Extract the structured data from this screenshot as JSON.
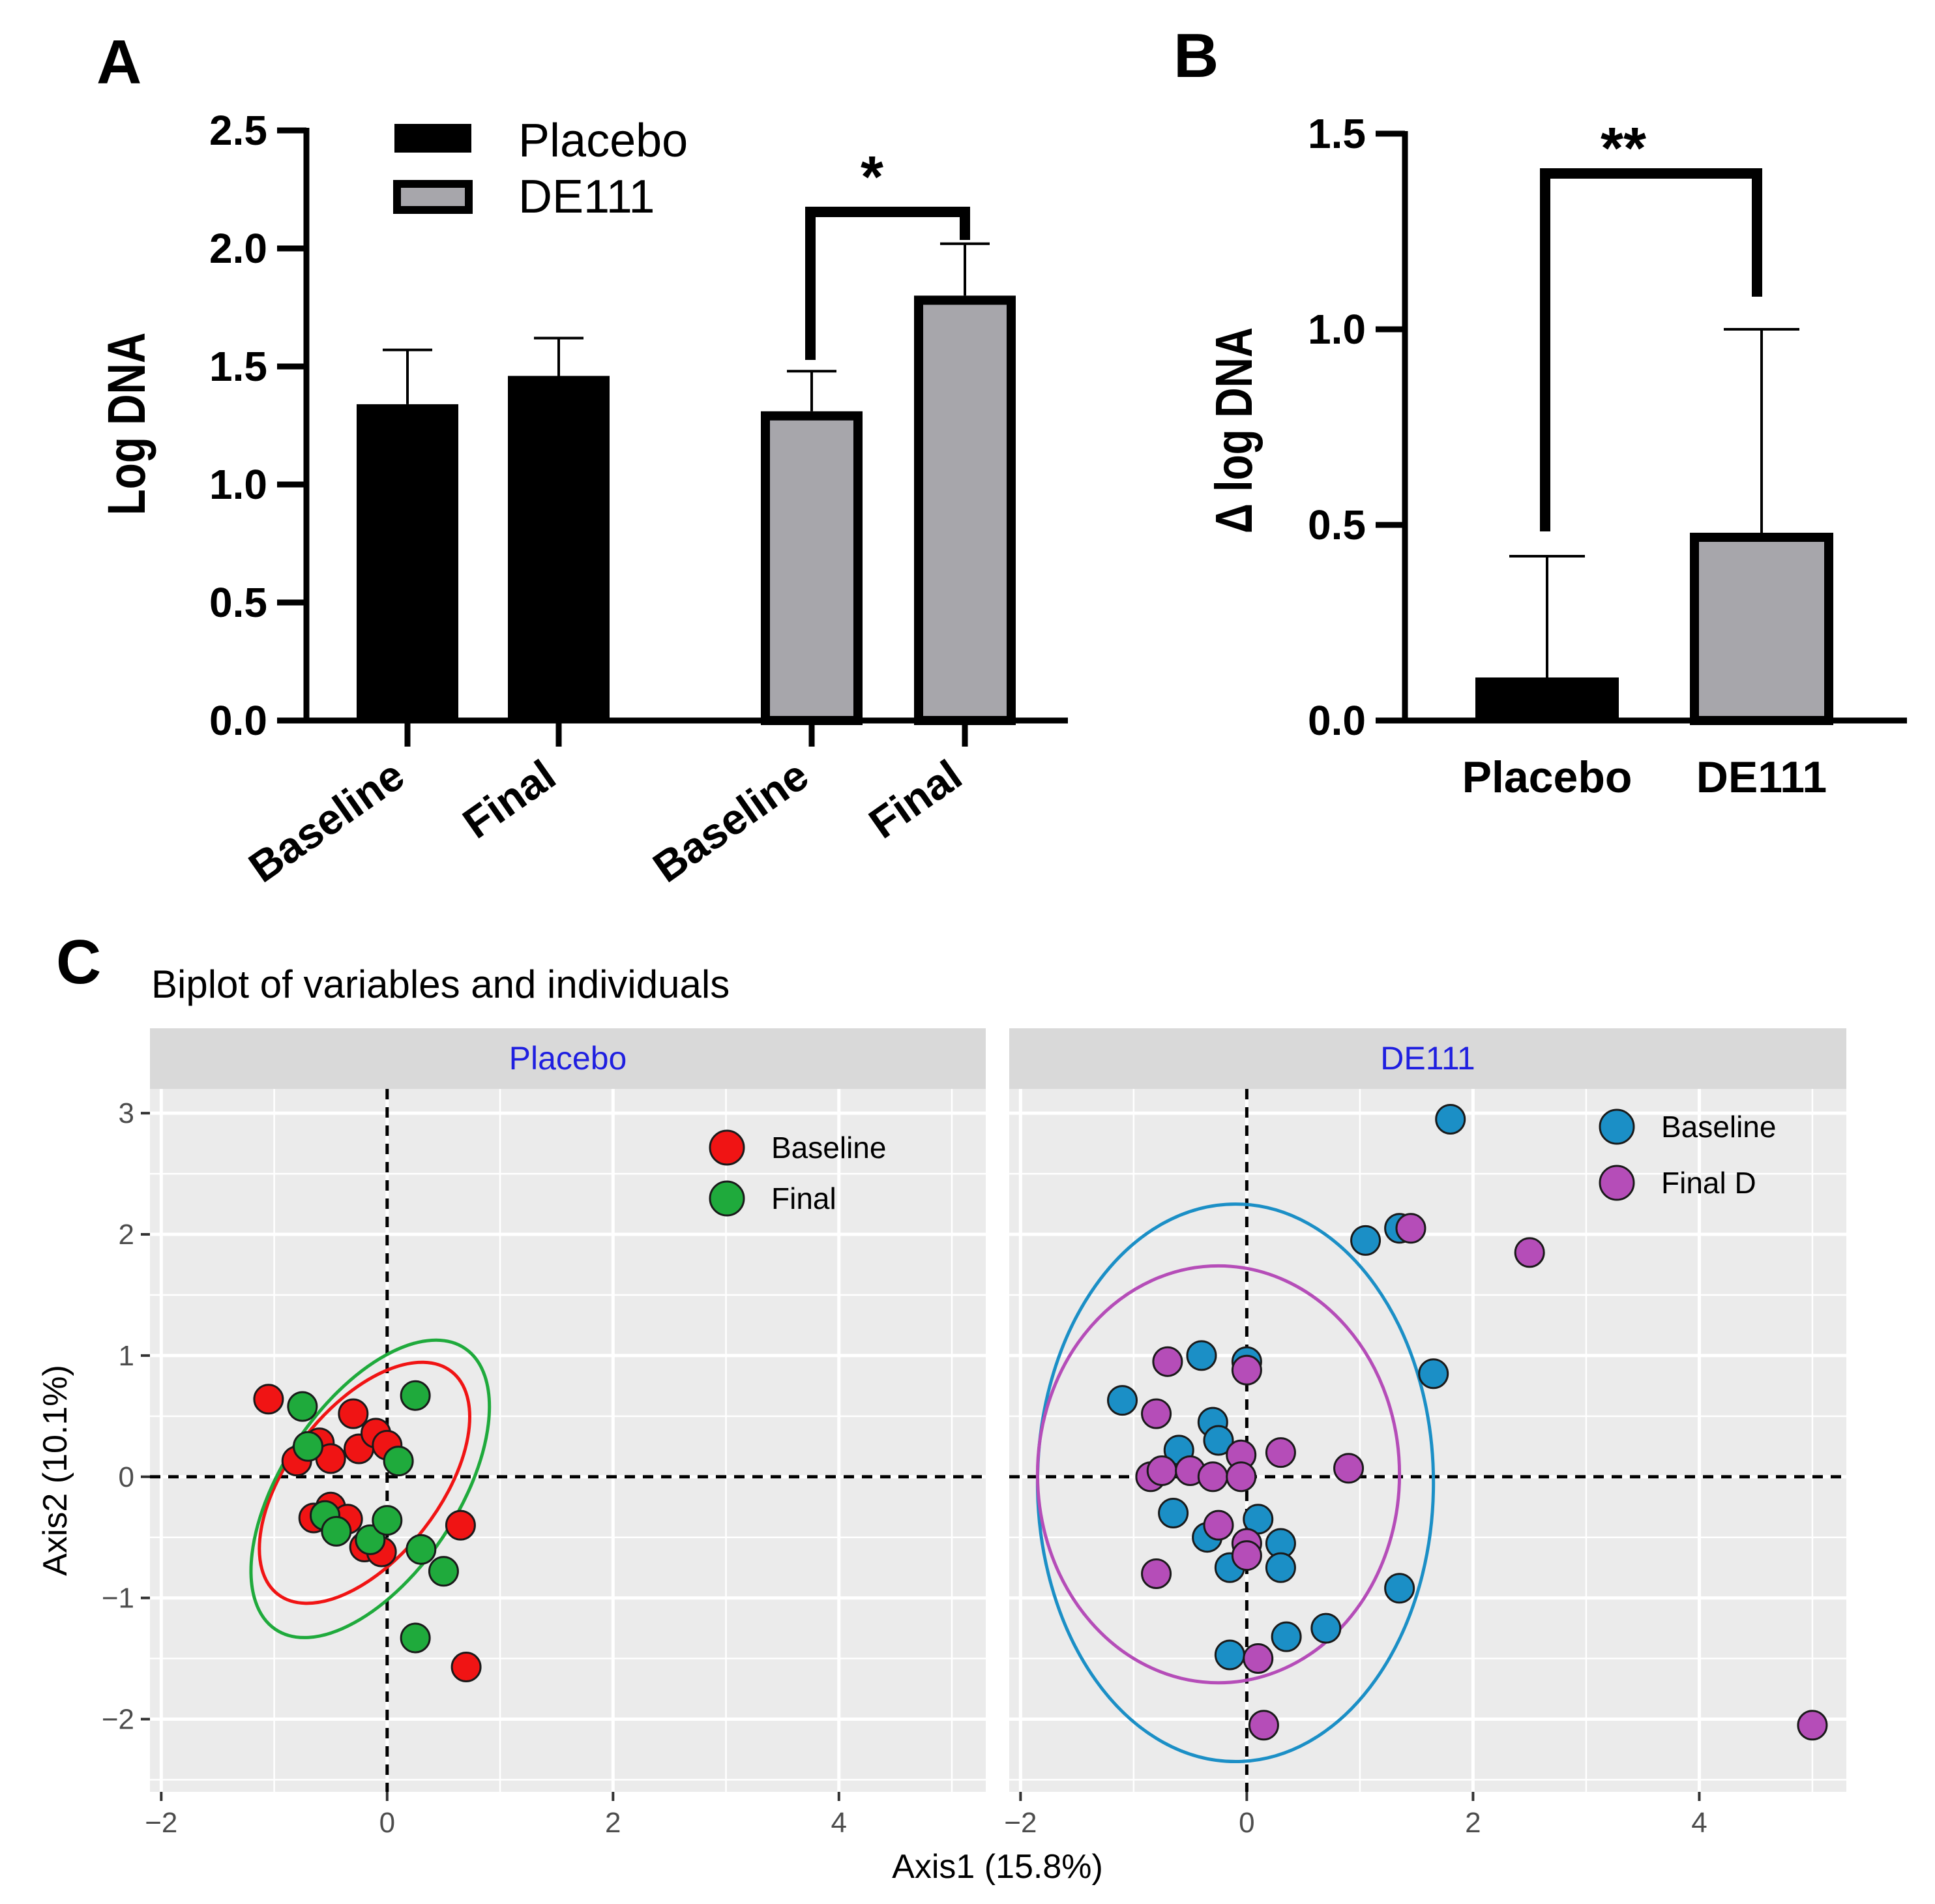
{
  "panels": {
    "A": "A",
    "B": "B",
    "C": "C"
  },
  "colors": {
    "placebo_bar": "#000000",
    "de111_bar": "#a7a6ab",
    "baseline_placebo": "#f01414",
    "final_placebo": "#1faa3c",
    "baseline_de111": "#1b8fc6",
    "final_de111": "#b54db8",
    "facet_strip": "#d9d9d9",
    "panel_bg": "#ebebeb",
    "strip_text": "#1f1fe0"
  },
  "chart_data": [
    {
      "id": "A",
      "type": "bar",
      "ylabel": "Log DNA",
      "ylim": [
        0,
        2.5
      ],
      "yticks": [
        "0.0",
        "0.5",
        "1.0",
        "1.5",
        "2.0",
        "2.5"
      ],
      "categories": [
        "Baseline",
        "Final",
        "Baseline",
        "Final"
      ],
      "groups": [
        "Placebo",
        "Placebo",
        "DE111",
        "DE111"
      ],
      "values": [
        1.34,
        1.46,
        1.31,
        1.8
      ],
      "errors": [
        0.23,
        0.16,
        0.17,
        0.22
      ],
      "legend": [
        "Placebo",
        "DE111"
      ],
      "annotation": "*"
    },
    {
      "id": "B",
      "type": "bar",
      "ylabel": "Δ log DNA",
      "ylim": [
        0,
        1.5
      ],
      "yticks": [
        "0.0",
        "0.5",
        "1.0",
        "1.5"
      ],
      "categories": [
        "Placebo",
        "DE111"
      ],
      "values": [
        0.11,
        0.48
      ],
      "errors": [
        0.31,
        0.52
      ],
      "annotation": "**"
    },
    {
      "id": "C",
      "type": "scatter",
      "title": "Biplot of variables and individuals",
      "xlabel": "Axis1 (15.8%)",
      "ylabel": "Axis2 (10.1%)",
      "xlim": [
        -2.1,
        5.3
      ],
      "ylim": [
        -2.6,
        3.2
      ],
      "xticks": [
        "−2",
        "0",
        "2",
        "4"
      ],
      "yticks": [
        "−2",
        "−1",
        "0",
        "1",
        "2",
        "3"
      ],
      "facets": [
        {
          "label": "Placebo",
          "legend": [
            "Baseline",
            "Final"
          ],
          "series": [
            {
              "name": "Baseline",
              "points": [
                [
                  -1.05,
                  0.64
                ],
                [
                  -0.8,
                  0.13
                ],
                [
                  -0.6,
                  0.28
                ],
                [
                  -0.5,
                  0.15
                ],
                [
                  -0.3,
                  0.52
                ],
                [
                  -0.25,
                  0.23
                ],
                [
                  -0.1,
                  0.36
                ],
                [
                  0.0,
                  0.26
                ],
                [
                  -0.5,
                  -0.25
                ],
                [
                  -0.35,
                  -0.35
                ],
                [
                  -0.2,
                  -0.58
                ],
                [
                  -0.05,
                  -0.62
                ],
                [
                  0.65,
                  -0.4
                ],
                [
                  0.7,
                  -1.57
                ],
                [
                  -0.65,
                  -0.34
                ]
              ]
            },
            {
              "name": "Final",
              "points": [
                [
                  -0.75,
                  0.58
                ],
                [
                  -0.7,
                  0.25
                ],
                [
                  0.25,
                  0.67
                ],
                [
                  0.1,
                  0.13
                ],
                [
                  -0.55,
                  -0.32
                ],
                [
                  -0.45,
                  -0.45
                ],
                [
                  -0.15,
                  -0.52
                ],
                [
                  0.0,
                  -0.36
                ],
                [
                  0.3,
                  -0.6
                ],
                [
                  0.5,
                  -0.78
                ],
                [
                  0.25,
                  -1.33
                ]
              ]
            }
          ],
          "ellipses": [
            {
              "name": "Baseline",
              "cx": -0.2,
              "cy": -0.05,
              "rx": 1.25,
              "ry": 0.62,
              "angle_deg": -52
            },
            {
              "name": "Final",
              "cx": -0.15,
              "cy": -0.1,
              "rx": 1.5,
              "ry": 0.72,
              "angle_deg": -56
            }
          ]
        },
        {
          "label": "DE111",
          "legend": [
            "Baseline",
            "Final D"
          ],
          "series": [
            {
              "name": "Baseline",
              "points": [
                [
                  1.8,
                  2.95
                ],
                [
                  1.05,
                  1.95
                ],
                [
                  1.35,
                  2.05
                ],
                [
                  1.65,
                  0.85
                ],
                [
                  -1.1,
                  0.63
                ],
                [
                  -0.4,
                  1.0
                ],
                [
                  0.0,
                  0.95
                ],
                [
                  -0.3,
                  0.45
                ],
                [
                  -0.25,
                  0.3
                ],
                [
                  -0.6,
                  0.22
                ],
                [
                  -0.65,
                  -0.3
                ],
                [
                  -0.35,
                  -0.5
                ],
                [
                  -0.15,
                  -0.75
                ],
                [
                  0.1,
                  -0.35
                ],
                [
                  0.3,
                  -0.55
                ],
                [
                  0.3,
                  -0.75
                ],
                [
                  1.35,
                  -0.92
                ],
                [
                  0.7,
                  -1.25
                ],
                [
                  0.35,
                  -1.32
                ],
                [
                  -0.15,
                  -1.47
                ]
              ]
            },
            {
              "name": "Final D",
              "points": [
                [
                  1.45,
                  2.05
                ],
                [
                  2.5,
                  1.85
                ],
                [
                  5.0,
                  -2.05
                ],
                [
                  -0.7,
                  0.95
                ],
                [
                  0.0,
                  0.88
                ],
                [
                  -0.8,
                  0.52
                ],
                [
                  0.3,
                  0.2
                ],
                [
                  0.9,
                  0.07
                ],
                [
                  -0.05,
                  0.18
                ],
                [
                  -0.85,
                  0.0
                ],
                [
                  -0.75,
                  0.05
                ],
                [
                  -0.5,
                  0.05
                ],
                [
                  -0.3,
                  0.0
                ],
                [
                  -0.05,
                  0.0
                ],
                [
                  -0.25,
                  -0.4
                ],
                [
                  0.0,
                  -0.55
                ],
                [
                  0.0,
                  -0.65
                ],
                [
                  -0.8,
                  -0.8
                ],
                [
                  0.1,
                  -1.5
                ],
                [
                  0.15,
                  -2.05
                ]
              ]
            }
          ],
          "ellipses": [
            {
              "name": "Baseline",
              "cx": -0.1,
              "cy": -0.05,
              "rx": 1.75,
              "ry": 2.3,
              "angle_deg": 0
            },
            {
              "name": "Final D",
              "cx": -0.25,
              "cy": 0.02,
              "rx": 1.6,
              "ry": 1.72,
              "angle_deg": 0
            }
          ]
        }
      ]
    }
  ]
}
